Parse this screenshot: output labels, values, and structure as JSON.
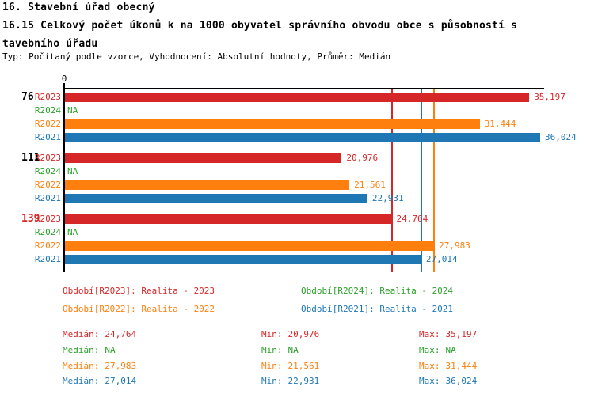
{
  "header": {
    "title_line1": "16. Stavební úřad obecný",
    "title_line2": "16.15 Celkový počet úkonů k na 1000 obyvatel správního obvodu obce s působností s",
    "title_line3": "tavebního úřadu",
    "subtitle": "Typ: Počítaný podle vzorce, Vyhodnocení: Absolutní hodnoty, Průměr: Medián"
  },
  "chart_data": {
    "type": "bar",
    "orientation": "horizontal",
    "x_axis": {
      "tick_labels": [
        "0"
      ],
      "xmin": 0,
      "xmax": 36024,
      "grid": false
    },
    "series_colors": {
      "R2023": "#d62728",
      "R2024": "#2ca02c",
      "R2022": "#ff7f0e",
      "R2021": "#1f77b4"
    },
    "groups": [
      {
        "label": "76",
        "label_color": "#000000",
        "bars": [
          {
            "series": "R2023",
            "value": 35197,
            "display": "35,197"
          },
          {
            "series": "R2024",
            "value": null,
            "display": "NA"
          },
          {
            "series": "R2022",
            "value": 31444,
            "display": "31,444"
          },
          {
            "series": "R2021",
            "value": 36024,
            "display": "36,024"
          }
        ]
      },
      {
        "label": "111",
        "label_color": "#000000",
        "bars": [
          {
            "series": "R2023",
            "value": 20976,
            "display": "20,976"
          },
          {
            "series": "R2024",
            "value": null,
            "display": "NA"
          },
          {
            "series": "R2022",
            "value": 21561,
            "display": "21,561"
          },
          {
            "series": "R2021",
            "value": 22931,
            "display": "22,931"
          }
        ]
      },
      {
        "label": "139",
        "label_color": "#d62728",
        "bars": [
          {
            "series": "R2023",
            "value": 24764,
            "display": "24,764"
          },
          {
            "series": "R2024",
            "value": null,
            "display": "NA"
          },
          {
            "series": "R2022",
            "value": 27983,
            "display": "27,983"
          },
          {
            "series": "R2021",
            "value": 27014,
            "display": "27,014"
          }
        ]
      }
    ],
    "median_lines": [
      {
        "series": "R2023",
        "value": 24764
      },
      {
        "series": "R2021",
        "value": 27014
      },
      {
        "series": "R2022",
        "value": 27983
      }
    ]
  },
  "legend": {
    "items": [
      {
        "series": "R2023",
        "label": "Období[R2023]: Realita - 2023"
      },
      {
        "series": "R2024",
        "label": "Období[R2024]: Realita - 2024"
      },
      {
        "series": "R2022",
        "label": "Období[R2022]: Realita - 2022"
      },
      {
        "series": "R2021",
        "label": "Období[R2021]: Realita - 2021"
      }
    ]
  },
  "stats": {
    "labels": {
      "median": "Medián:",
      "min": "Min:",
      "max": "Max:"
    },
    "rows": [
      {
        "series": "R2023",
        "median": "24,764",
        "min": "20,976",
        "max": "35,197"
      },
      {
        "series": "R2024",
        "median": "NA",
        "min": "NA",
        "max": "NA"
      },
      {
        "series": "R2022",
        "median": "27,983",
        "min": "21,561",
        "max": "31,444"
      },
      {
        "series": "R2021",
        "median": "27,014",
        "min": "22,931",
        "max": "36,024"
      }
    ]
  }
}
